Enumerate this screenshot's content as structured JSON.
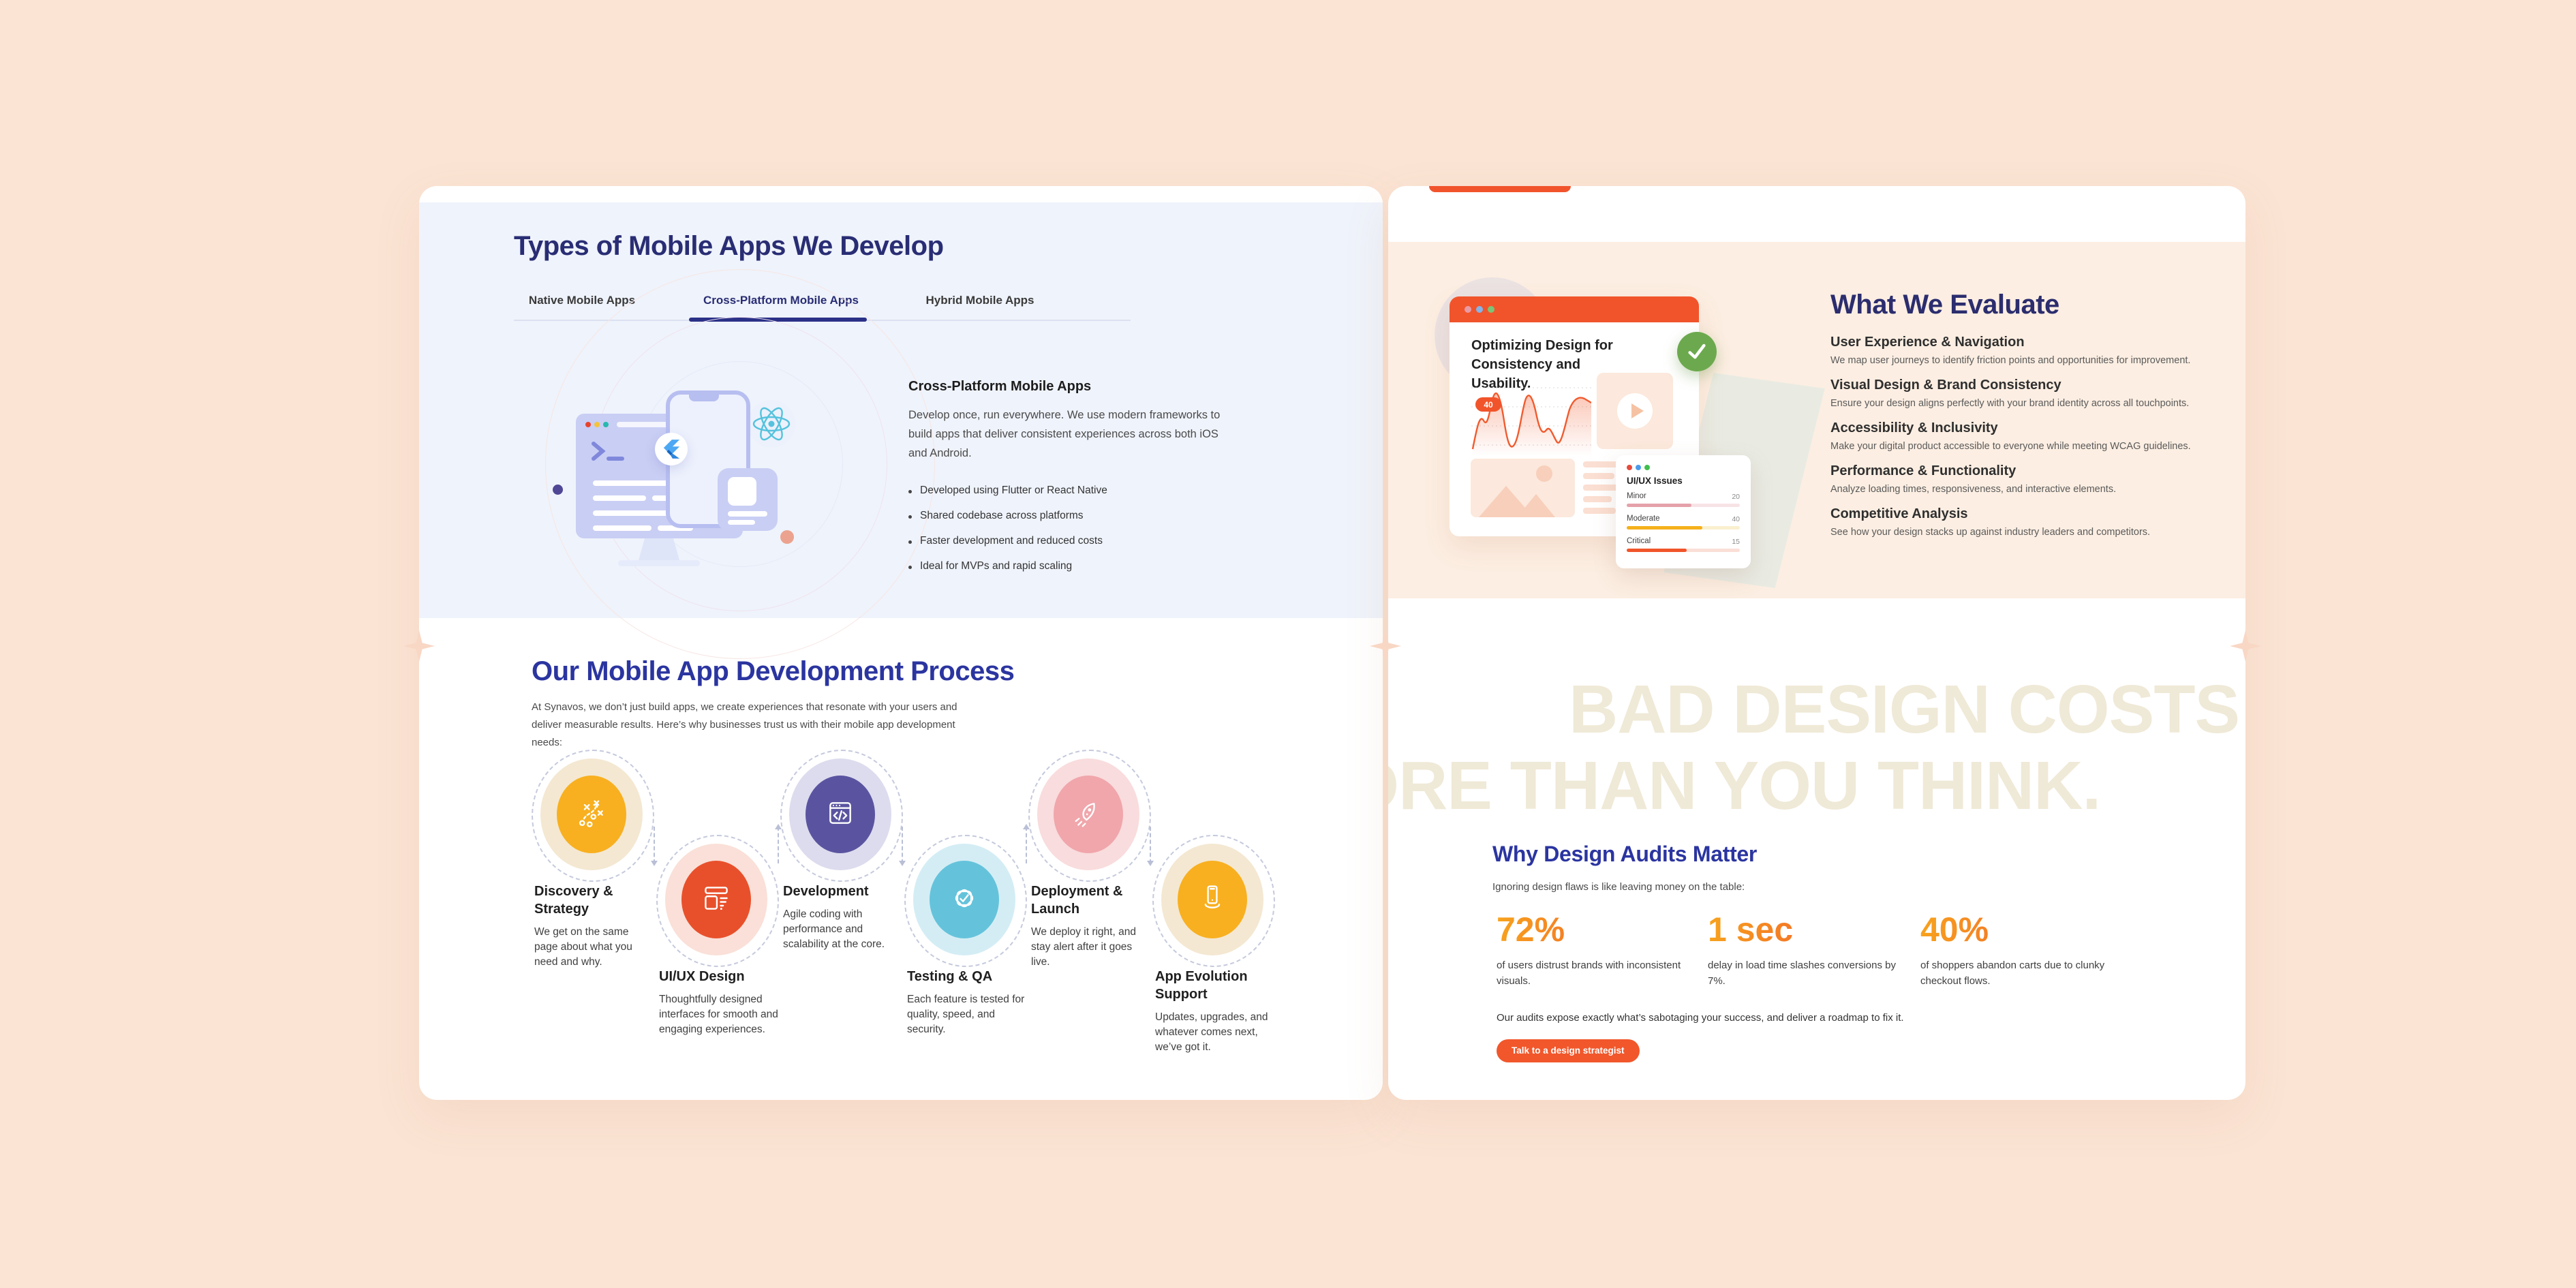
{
  "colors": {
    "page_background": "#FBE4D4",
    "left_blue_section": "#EFF3FB",
    "right_peach_section": "#FCEEE2",
    "navy_heading": "#292D74",
    "blue_heading": "#2B35A0",
    "accent_orange": "#F1542B",
    "watermark": "#EFE9D7",
    "stat_gradient_start": "#F7A31E",
    "stat_gradient_end": "#F1572B"
  },
  "left_panel": {
    "apps": {
      "title": "Types of Mobile Apps We Develop",
      "tabs": [
        {
          "label": "Native Mobile Apps",
          "active": false
        },
        {
          "label": "Cross-Platform Mobile Apps",
          "active": true
        },
        {
          "label": "Hybrid Mobile Apps",
          "active": false
        }
      ],
      "content": {
        "heading": "Cross-Platform Mobile Apps",
        "body": "Develop once, run everywhere. We use modern frameworks to build apps that deliver consistent experiences across both iOS and Android.",
        "bullets": [
          "Developed using Flutter or React Native",
          "Shared codebase across platforms",
          "Faster development and reduced costs",
          "Ideal for MVPs and rapid scaling"
        ]
      }
    },
    "process": {
      "title": "Our Mobile App Development Process",
      "intro": "At Synavos, we don’t just build apps, we create experiences that resonate with your users and deliver measurable results. Here’s why businesses trust us with their mobile app development needs:",
      "steps": [
        {
          "title": "Discovery & Strategy",
          "description": "We get on the same page about what you need and why.",
          "color": "#F8B020",
          "light_color": "#F4E8D2",
          "icon": "strategy-icon"
        },
        {
          "title": "UI/UX Design",
          "description": "Thoughtfully designed interfaces for smooth and engaging experiences.",
          "color": "#E8502B",
          "light_color": "#FAE0D8",
          "icon": "wireframe-icon"
        },
        {
          "title": "Development",
          "description": "Agile coding with performance and scalability at the core.",
          "color": "#5A54A0",
          "light_color": "#DDDCEE",
          "icon": "code-window-icon"
        },
        {
          "title": "Testing & QA",
          "description": "Each feature is tested for quality, speed, and security.",
          "color": "#64C3DB",
          "light_color": "#D4EDF5",
          "icon": "badge-check-icon"
        },
        {
          "title": "Deployment & Launch",
          "description": "We deploy it right, and stay alert after it goes live.",
          "color": "#F0A6AB",
          "light_color": "#F9DCDD",
          "icon": "rocket-icon"
        },
        {
          "title": "App Evolution Support",
          "description": "Updates, upgrades, and whatever comes next, we’ve got it.",
          "color": "#F8B020",
          "light_color": "#F4E8D2",
          "icon": "phone-support-icon"
        }
      ]
    }
  },
  "right_panel": {
    "evaluate": {
      "title": "What We Evaluate",
      "items": [
        {
          "title": "User Experience & Navigation",
          "description": "We map user journeys to identify friction points and opportunities for improvement."
        },
        {
          "title": "Visual Design & Brand Consistency",
          "description": "Ensure your design aligns perfectly with your brand identity across all touchpoints."
        },
        {
          "title": "Accessibility & Inclusivity",
          "description": "Make your digital product accessible to everyone while meeting WCAG guidelines."
        },
        {
          "title": "Performance & Functionality",
          "description": "Analyze loading times, responsiveness, and interactive elements."
        },
        {
          "title": "Competitive Analysis",
          "description": "See how your design stacks up against industry leaders and competitors."
        }
      ],
      "mockup": {
        "heading": "Optimizing Design for Consistency and Usability.",
        "chart_label": "40",
        "issues": {
          "title": "UI/UX Issues",
          "rows": [
            {
              "label": "Minor",
              "value": "20",
              "fill_pct": 57
            },
            {
              "label": "Moderate",
              "value": "40",
              "fill_pct": 67
            },
            {
              "label": "Critical",
              "value": "15",
              "fill_pct": 53
            }
          ]
        }
      }
    },
    "audit": {
      "watermark_line1": "BAD DESIGN COSTS",
      "watermark_line2": "MORE THAN YOU THINK.",
      "title": "Why Design Audits Matter",
      "subtitle": "Ignoring design flaws is like leaving money on the table:",
      "stats": [
        {
          "value": "72%",
          "description": "of users distrust brands with inconsistent visuals."
        },
        {
          "value": "1 sec",
          "description": "delay in load time slashes conversions by 7%."
        },
        {
          "value": "40%",
          "description": "of shoppers abandon carts due to clunky checkout flows."
        }
      ],
      "note": "Our audits expose exactly what’s sabotaging your success, and deliver a roadmap to fix it.",
      "cta_label": "Talk to a design strategist"
    }
  }
}
